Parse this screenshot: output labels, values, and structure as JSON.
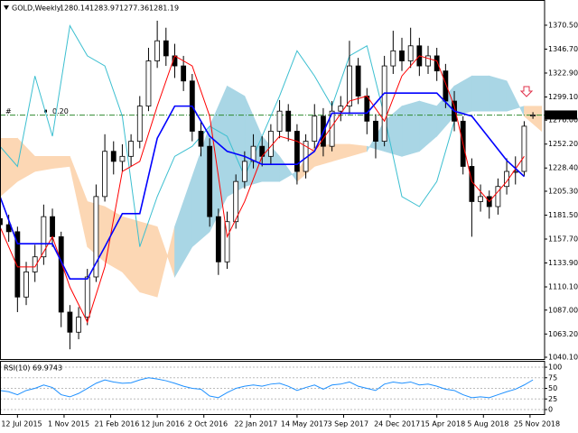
{
  "chart_data": {
    "type": "candlestick",
    "title": "GOLD,Weekly",
    "xlim": [
      -6,
      181
    ],
    "xticks": [
      {
        "value": 0,
        "label": "12 Jul 2015"
      },
      {
        "value": 16,
        "label": "1 Nov 2015"
      },
      {
        "value": 32,
        "label": "21 Feb 2016"
      },
      {
        "value": 48,
        "label": "12 Jun 2016"
      },
      {
        "value": 64,
        "label": "2 Oct 2016"
      },
      {
        "value": 80,
        "label": "22 Jan 2017"
      },
      {
        "value": 96,
        "label": "14 May 2017"
      },
      {
        "value": 112,
        "label": "3 Sep 2017"
      },
      {
        "value": 128,
        "label": "24 Dec 2017"
      },
      {
        "value": 144,
        "label": "15 Apr 2018"
      },
      {
        "value": 160,
        "label": "5 Aug 2018"
      },
      {
        "value": 176,
        "label": "25 Nov 2018"
      }
    ],
    "ylim": [
      1038.3,
      1393.8
    ],
    "yticks": [
      {
        "value": 1370.5,
        "label": "1370.50"
      },
      {
        "value": 1346.7,
        "label": "1346.70"
      },
      {
        "value": 1322.9,
        "label": "1322.90"
      },
      {
        "value": 1299.1,
        "label": "1299.10"
      },
      {
        "value": 1276,
        "label": "1276.00"
      },
      {
        "value": 1252.2,
        "label": "1252.20"
      },
      {
        "value": 1228.4,
        "label": "1228.40"
      },
      {
        "value": 1205.3,
        "label": "1205.30"
      },
      {
        "value": 1181.5,
        "label": "1181.50"
      },
      {
        "value": 1157.7,
        "label": "1157.70"
      },
      {
        "value": 1133.9,
        "label": "1133.90"
      },
      {
        "value": 1110.1,
        "label": "1110.10"
      },
      {
        "value": 1087,
        "label": "1087.00"
      },
      {
        "value": 1063.2,
        "label": "1063.20"
      },
      {
        "value": 1040.1,
        "label": "1040.10"
      }
    ],
    "candles": {
      "up_color": "#ffffff",
      "down_color": "#000000",
      "x": [
        -6,
        -3,
        0,
        3,
        6,
        9,
        12,
        15,
        18,
        21,
        24,
        27,
        30,
        33,
        36,
        39,
        42,
        45,
        48,
        51,
        54,
        57,
        60,
        63,
        66,
        69,
        72,
        75,
        78,
        81,
        84,
        87,
        90,
        93,
        96,
        99,
        102,
        105,
        108,
        111,
        114,
        117,
        120,
        123,
        126,
        129,
        132,
        135,
        138,
        141,
        144,
        147,
        150,
        153,
        156,
        159,
        162,
        165,
        168,
        171,
        174,
        177
      ],
      "open": [
        1178,
        1172,
        1165,
        1100,
        1125,
        1140,
        1180,
        1160,
        1085,
        1065,
        1080,
        1120,
        1200,
        1245,
        1235,
        1240,
        1255,
        1290,
        1335,
        1355,
        1340,
        1330,
        1315,
        1265,
        1250,
        1180,
        1135,
        1175,
        1215,
        1235,
        1250,
        1240,
        1265,
        1285,
        1265,
        1225,
        1255,
        1280,
        1250,
        1285,
        1290,
        1330,
        1300,
        1275,
        1255,
        1330,
        1345,
        1335,
        1350,
        1330,
        1340,
        1325,
        1295,
        1275,
        1230,
        1195,
        1200,
        1190,
        1210,
        1225,
        1225,
        1280.14
      ],
      "high": [
        1186,
        1182,
        1170,
        1135,
        1152,
        1192,
        1188,
        1165,
        1092,
        1090,
        1128,
        1212,
        1262,
        1255,
        1252,
        1262,
        1300,
        1348,
        1375,
        1368,
        1352,
        1340,
        1322,
        1275,
        1258,
        1188,
        1185,
        1222,
        1245,
        1262,
        1260,
        1272,
        1296,
        1292,
        1272,
        1262,
        1292,
        1288,
        1295,
        1300,
        1355,
        1338,
        1308,
        1282,
        1340,
        1365,
        1358,
        1368,
        1358,
        1350,
        1348,
        1332,
        1305,
        1280,
        1238,
        1212,
        1206,
        1218,
        1238,
        1240,
        1275,
        1283.97
      ],
      "low": [
        1160,
        1155,
        1085,
        1092,
        1115,
        1132,
        1150,
        1070,
        1048,
        1058,
        1072,
        1115,
        1195,
        1222,
        1225,
        1230,
        1248,
        1285,
        1328,
        1330,
        1318,
        1305,
        1255,
        1240,
        1170,
        1122,
        1128,
        1168,
        1208,
        1228,
        1230,
        1232,
        1258,
        1255,
        1212,
        1218,
        1248,
        1240,
        1245,
        1275,
        1282,
        1292,
        1262,
        1238,
        1250,
        1322,
        1325,
        1328,
        1320,
        1322,
        1315,
        1288,
        1265,
        1222,
        1160,
        1185,
        1178,
        1182,
        1202,
        1212,
        1220,
        1277.36
      ],
      "close": [
        1172,
        1165,
        1100,
        1125,
        1140,
        1180,
        1160,
        1085,
        1065,
        1080,
        1120,
        1200,
        1245,
        1235,
        1240,
        1255,
        1290,
        1335,
        1355,
        1340,
        1330,
        1315,
        1265,
        1250,
        1180,
        1135,
        1175,
        1215,
        1235,
        1250,
        1240,
        1265,
        1285,
        1265,
        1225,
        1255,
        1280,
        1250,
        1285,
        1290,
        1330,
        1300,
        1275,
        1255,
        1330,
        1345,
        1335,
        1350,
        1330,
        1340,
        1325,
        1295,
        1275,
        1230,
        1195,
        1200,
        1190,
        1210,
        1225,
        1225,
        1270,
        1281.19
      ]
    },
    "cloud": {
      "up_color": "#a9d6e5",
      "down_color": "#fcd7b4",
      "x": [
        -6,
        0,
        6,
        12,
        18,
        24,
        30,
        36,
        42,
        48,
        54,
        60,
        66,
        72,
        78,
        84,
        90,
        96,
        102,
        108,
        114,
        120,
        126,
        132,
        138,
        144,
        150,
        156,
        162,
        168,
        174,
        180
      ],
      "span_a": [
        1200,
        1215,
        1225,
        1228,
        1230,
        1150,
        1135,
        1125,
        1105,
        1100,
        1170,
        1220,
        1270,
        1310,
        1300,
        1260,
        1240,
        1215,
        1230,
        1235,
        1240,
        1245,
        1275,
        1290,
        1295,
        1290,
        1310,
        1320,
        1320,
        1315,
        1280,
        1265
      ],
      "span_b": [
        1258,
        1258,
        1240,
        1240,
        1240,
        1195,
        1190,
        1180,
        1175,
        1170,
        1120,
        1150,
        1165,
        1200,
        1210,
        1215,
        1215,
        1225,
        1250,
        1252,
        1252,
        1250,
        1245,
        1240,
        1245,
        1260,
        1280,
        1285,
        1285,
        1285,
        1290,
        1290
      ]
    },
    "lines": [
      {
        "color": "#3cbfd0",
        "x": [
          -6,
          0,
          6,
          12,
          18,
          24,
          30,
          36,
          42,
          48,
          54,
          60,
          66,
          72,
          78,
          84,
          90,
          96,
          102,
          108,
          114,
          120,
          126,
          132,
          138,
          144,
          150
        ],
        "values": [
          1250,
          1230,
          1320,
          1260,
          1370,
          1340,
          1330,
          1280,
          1150,
          1200,
          1240,
          1250,
          1270,
          1260,
          1220,
          1260,
          1300,
          1345,
          1320,
          1290,
          1340,
          1350,
          1280,
          1200,
          1190,
          1215,
          1275
        ]
      },
      {
        "color": "#ff0000",
        "x": [
          -6,
          0,
          6,
          12,
          18,
          24,
          30,
          36,
          42,
          48,
          54,
          60,
          66,
          72,
          78,
          84,
          90,
          96,
          102,
          108,
          114,
          120,
          126,
          132,
          138,
          144,
          150,
          156,
          162,
          168,
          174
        ],
        "values": [
          1170,
          1130,
          1130,
          1160,
          1110,
          1075,
          1130,
          1225,
          1235,
          1290,
          1340,
          1330,
          1280,
          1160,
          1195,
          1240,
          1260,
          1255,
          1245,
          1270,
          1295,
          1300,
          1275,
          1320,
          1340,
          1335,
          1290,
          1215,
          1195,
          1215,
          1240
        ]
      },
      {
        "color": "#0000ff",
        "x": [
          -6,
          0,
          6,
          12,
          18,
          24,
          30,
          36,
          42,
          48,
          54,
          60,
          66,
          72,
          78,
          84,
          90,
          96,
          102,
          108,
          114,
          120,
          126,
          132,
          138,
          144,
          150,
          156,
          162,
          168,
          174
        ],
        "values": [
          1200,
          1153,
          1153,
          1153,
          1118,
          1118,
          1150,
          1183,
          1183,
          1258,
          1290,
          1290,
          1260,
          1245,
          1240,
          1232,
          1232,
          1232,
          1245,
          1283,
          1283,
          1283,
          1303,
          1303,
          1303,
          1303,
          1285,
          1280,
          1258,
          1236,
          1220
        ]
      }
    ],
    "hline": {
      "value": 1281,
      "color": "#2e8b2e",
      "marker": "#",
      "label": "0.20"
    },
    "rsi": {
      "label": "RSI(10)",
      "color": "#1e90ff",
      "ylim": [
        -10.6,
        114.9
      ],
      "yticks": [
        100,
        75,
        50,
        25,
        0
      ],
      "grid": true,
      "values": [
        45,
        42,
        35,
        45,
        50,
        58,
        52,
        35,
        30,
        38,
        50,
        62,
        70,
        65,
        62,
        63,
        70,
        75,
        72,
        68,
        62,
        55,
        50,
        48,
        32,
        28,
        40,
        50,
        55,
        58,
        55,
        60,
        62,
        55,
        45,
        52,
        58,
        48,
        58,
        60,
        65,
        55,
        50,
        45,
        60,
        65,
        62,
        65,
        58,
        60,
        55,
        48,
        45,
        35,
        28,
        30,
        28,
        35,
        42,
        48,
        58,
        69.9743
      ]
    }
  }
}
